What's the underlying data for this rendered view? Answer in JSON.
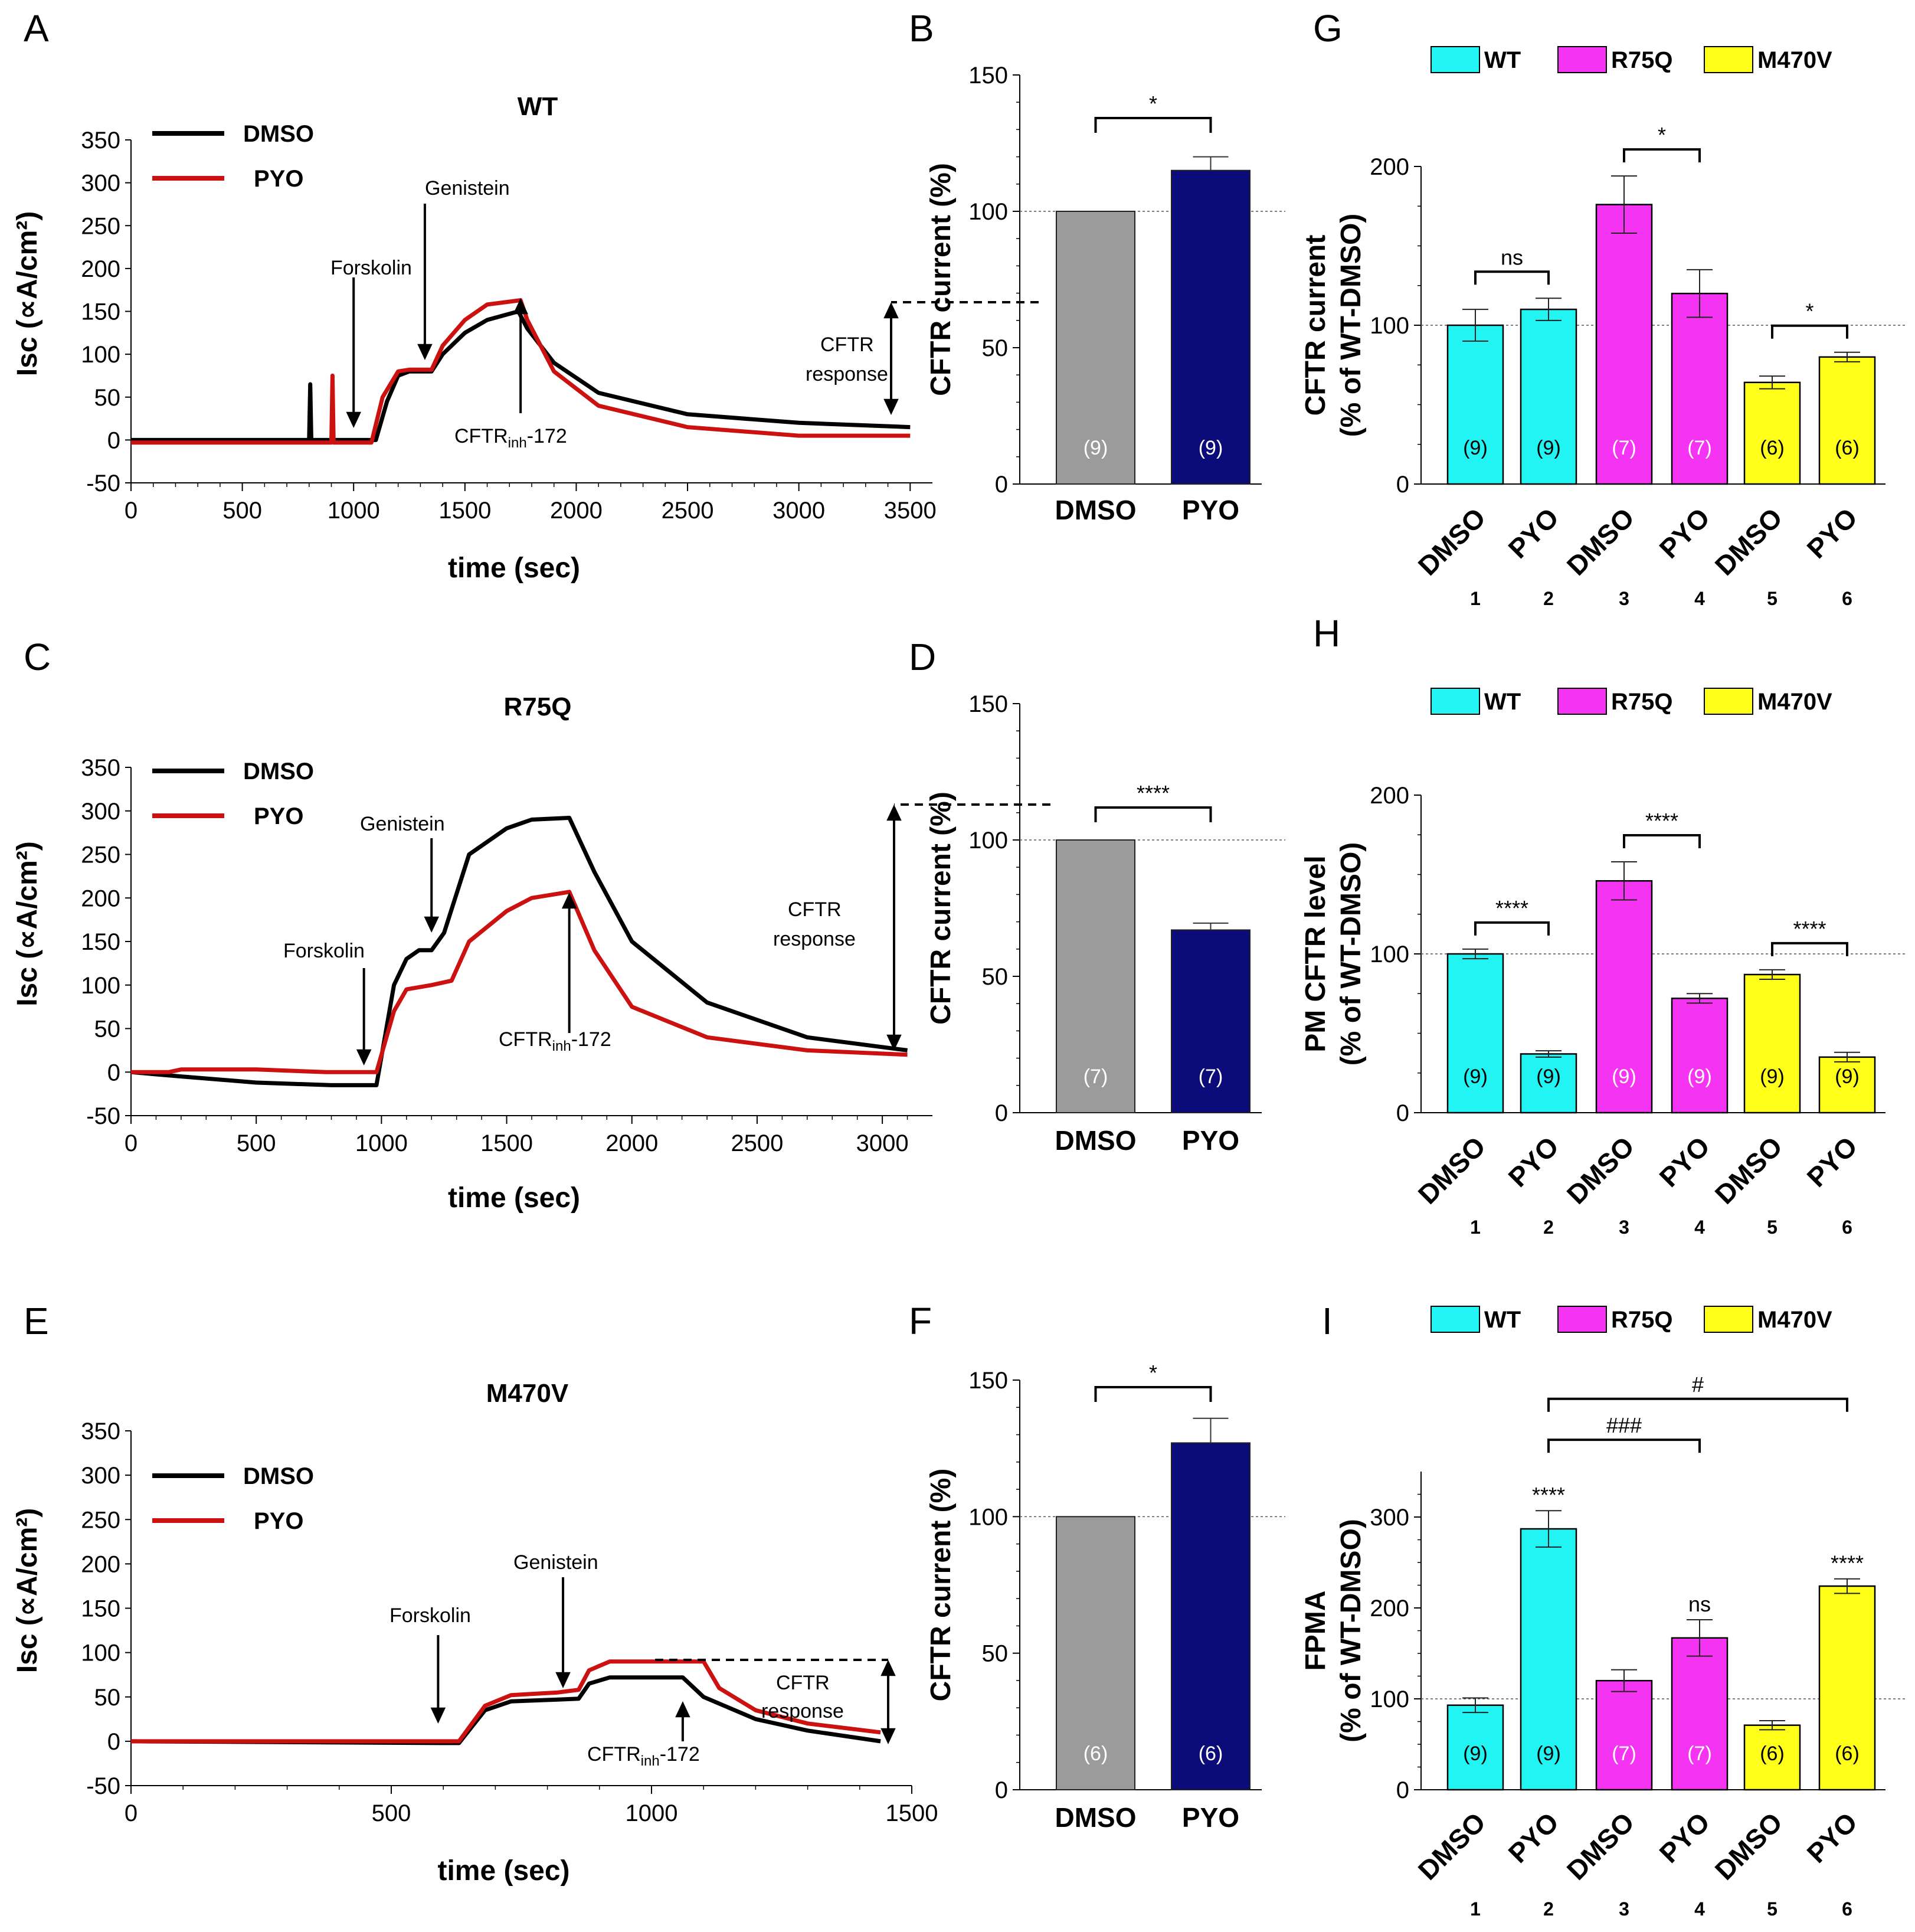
{
  "colors": {
    "dmso_line": "#000000",
    "pyo_line": "#cc1111",
    "dmso_bar": "#9b9b9b",
    "pyo_bar": "#0b0b7a",
    "wt": "#22f4f4",
    "r75q": "#f533f2",
    "m470v": "#ffff1a"
  },
  "chart_data": [
    {
      "panel": "A",
      "type": "line",
      "title": "WT",
      "xlabel": "time (sec)",
      "ylabel": "Isc (∝A/cm²)",
      "xlim": [
        0,
        3600
      ],
      "ylim": [
        -50,
        350
      ],
      "xticks": [
        "0",
        "500",
        "1000",
        "1500",
        "2000",
        "2500",
        "3000",
        "3500"
      ],
      "yticks": [
        "-50",
        "0",
        "50",
        "100",
        "150",
        "200",
        "250",
        "300",
        "350"
      ],
      "legend": [
        "DMSO",
        "PYO"
      ],
      "series": [
        {
          "name": "DMSO",
          "points": [
            [
              0,
              0
            ],
            [
              800,
              0
            ],
            [
              805,
              65
            ],
            [
              810,
              0
            ],
            [
              1100,
              0
            ],
            [
              1150,
              45
            ],
            [
              1200,
              75
            ],
            [
              1250,
              80
            ],
            [
              1350,
              80
            ],
            [
              1400,
              100
            ],
            [
              1500,
              125
            ],
            [
              1600,
              140
            ],
            [
              1740,
              150
            ],
            [
              1780,
              130
            ],
            [
              1900,
              90
            ],
            [
              2100,
              55
            ],
            [
              2500,
              30
            ],
            [
              3000,
              20
            ],
            [
              3500,
              15
            ]
          ]
        },
        {
          "name": "PYO",
          "points": [
            [
              0,
              -3
            ],
            [
              900,
              -3
            ],
            [
              905,
              75
            ],
            [
              910,
              -3
            ],
            [
              1080,
              -3
            ],
            [
              1130,
              50
            ],
            [
              1200,
              80
            ],
            [
              1250,
              82
            ],
            [
              1350,
              82
            ],
            [
              1400,
              110
            ],
            [
              1500,
              140
            ],
            [
              1600,
              158
            ],
            [
              1750,
              163
            ],
            [
              1780,
              140
            ],
            [
              1900,
              80
            ],
            [
              2100,
              40
            ],
            [
              2500,
              15
            ],
            [
              3000,
              5
            ],
            [
              3500,
              5
            ]
          ]
        }
      ],
      "annotations": [
        {
          "label": "Forskolin",
          "x": 1000
        },
        {
          "label": "Genistein",
          "x": 1320
        },
        {
          "label": "CFTR",
          "label_sub": "inh",
          "label_post": "-172",
          "x": 1750
        },
        {
          "label": "CFTR",
          "label_2": "response"
        }
      ]
    },
    {
      "panel": "C",
      "type": "line",
      "title": "R75Q",
      "xlabel": "time (sec)",
      "ylabel": "Isc (∝A/cm²)",
      "xlim": [
        0,
        3200
      ],
      "ylim": [
        -50,
        350
      ],
      "xticks": [
        "0",
        "500",
        "1000",
        "1500",
        "2000",
        "2500",
        "3000"
      ],
      "yticks": [
        "-50",
        "0",
        "50",
        "100",
        "150",
        "200",
        "250",
        "300",
        "350"
      ],
      "legend": [
        "DMSO",
        "PYO"
      ],
      "series": [
        {
          "name": "DMSO",
          "points": [
            [
              0,
              0
            ],
            [
              200,
              -5
            ],
            [
              500,
              -12
            ],
            [
              800,
              -15
            ],
            [
              980,
              -15
            ],
            [
              1050,
              100
            ],
            [
              1100,
              130
            ],
            [
              1150,
              140
            ],
            [
              1200,
              140
            ],
            [
              1250,
              160
            ],
            [
              1350,
              250
            ],
            [
              1500,
              280
            ],
            [
              1600,
              290
            ],
            [
              1750,
              292
            ],
            [
              1850,
              230
            ],
            [
              2000,
              150
            ],
            [
              2300,
              80
            ],
            [
              2700,
              40
            ],
            [
              3100,
              25
            ]
          ]
        },
        {
          "name": "PYO",
          "points": [
            [
              0,
              0
            ],
            [
              150,
              0
            ],
            [
              200,
              3
            ],
            [
              500,
              3
            ],
            [
              780,
              0
            ],
            [
              980,
              0
            ],
            [
              1050,
              70
            ],
            [
              1100,
              95
            ],
            [
              1200,
              100
            ],
            [
              1280,
              105
            ],
            [
              1350,
              150
            ],
            [
              1500,
              185
            ],
            [
              1600,
              200
            ],
            [
              1750,
              207
            ],
            [
              1850,
              140
            ],
            [
              2000,
              75
            ],
            [
              2300,
              40
            ],
            [
              2700,
              25
            ],
            [
              3100,
              20
            ]
          ]
        }
      ],
      "annotations": [
        {
          "label": "Forskolin",
          "x": 930
        },
        {
          "label": "Genistein",
          "x": 1200
        },
        {
          "label": "CFTR",
          "label_sub": "inh",
          "label_post": "-172",
          "x": 1750
        },
        {
          "label": "CFTR",
          "label_2": "response"
        }
      ]
    },
    {
      "panel": "E",
      "type": "line",
      "title": "M470V",
      "xlabel": "time (sec)",
      "ylabel": "Isc (∝A/cm²)",
      "xlim": [
        0,
        1500
      ],
      "ylim": [
        -50,
        350
      ],
      "xticks": [
        "0",
        "500",
        "1000",
        "1500"
      ],
      "yticks": [
        "-50",
        "0",
        "50",
        "100",
        "150",
        "200",
        "250",
        "300",
        "350"
      ],
      "legend": [
        "DMSO",
        "PYO"
      ],
      "series": [
        {
          "name": "DMSO",
          "points": [
            [
              0,
              0
            ],
            [
              600,
              -2
            ],
            [
              630,
              -2
            ],
            [
              680,
              35
            ],
            [
              730,
              45
            ],
            [
              820,
              47
            ],
            [
              860,
              48
            ],
            [
              880,
              65
            ],
            [
              920,
              72
            ],
            [
              1060,
              72
            ],
            [
              1100,
              50
            ],
            [
              1200,
              25
            ],
            [
              1300,
              12
            ],
            [
              1440,
              0
            ]
          ]
        },
        {
          "name": "PYO",
          "points": [
            [
              0,
              0
            ],
            [
              600,
              0
            ],
            [
              630,
              0
            ],
            [
              680,
              40
            ],
            [
              730,
              52
            ],
            [
              820,
              55
            ],
            [
              860,
              58
            ],
            [
              880,
              80
            ],
            [
              920,
              90
            ],
            [
              1100,
              90
            ],
            [
              1130,
              60
            ],
            [
              1200,
              35
            ],
            [
              1300,
              20
            ],
            [
              1440,
              10
            ]
          ]
        }
      ],
      "annotations": [
        {
          "label": "Forskolin",
          "x": 590
        },
        {
          "label": "Genistein",
          "x": 830
        },
        {
          "label": "CFTR",
          "label_sub": "inh",
          "label_post": "-172",
          "x": 1060
        },
        {
          "label": "CFTR",
          "label_2": "response"
        }
      ]
    },
    {
      "panel": "B",
      "type": "bar",
      "ylabel": "CFTR current (%)",
      "ylim": [
        0,
        150
      ],
      "yticks": [
        "0",
        "50",
        "100",
        "150"
      ],
      "categories": [
        "DMSO",
        "PYO"
      ],
      "values": [
        100,
        115
      ],
      "errors": [
        0,
        5
      ],
      "n": [
        "(9)",
        "(9)"
      ],
      "significance": "*"
    },
    {
      "panel": "D",
      "type": "bar",
      "ylabel": "CFTR current (%)",
      "ylim": [
        0,
        150
      ],
      "yticks": [
        "0",
        "50",
        "100",
        "150"
      ],
      "categories": [
        "DMSO",
        "PYO"
      ],
      "values": [
        100,
        67
      ],
      "errors": [
        0,
        2.5
      ],
      "n": [
        "(7)",
        "(7)"
      ],
      "significance": "****"
    },
    {
      "panel": "F",
      "type": "bar",
      "ylabel": "CFTR current (%)",
      "ylim": [
        0,
        150
      ],
      "yticks": [
        "0",
        "50",
        "100",
        "150"
      ],
      "categories": [
        "DMSO",
        "PYO"
      ],
      "values": [
        100,
        127
      ],
      "errors": [
        0,
        9
      ],
      "n": [
        "(6)",
        "(6)"
      ],
      "significance": "*"
    },
    {
      "panel": "G",
      "type": "bar",
      "ylabel": "CFTR current",
      "ylabel_2": "(% of WT-DMSO)",
      "ylim": [
        0,
        200
      ],
      "yticks": [
        "0",
        "100",
        "200"
      ],
      "legend": [
        "WT",
        "R75Q",
        "M470V"
      ],
      "categories": [
        "DMSO",
        "PYO",
        "DMSO",
        "PYO",
        "DMSO",
        "PYO"
      ],
      "indices": [
        "1",
        "2",
        "3",
        "4",
        "5",
        "6"
      ],
      "groups": [
        "WT",
        "WT",
        "R75Q",
        "R75Q",
        "M470V",
        "M470V"
      ],
      "values": [
        100,
        110,
        176,
        120,
        64,
        80
      ],
      "errors": [
        10,
        7,
        18,
        15,
        4,
        3
      ],
      "n": [
        "(9)",
        "(9)",
        "(7)",
        "(7)",
        "(6)",
        "(6)"
      ],
      "comparisons": [
        {
          "from": 0,
          "to": 1,
          "label": "ns"
        },
        {
          "from": 2,
          "to": 3,
          "label": "*"
        },
        {
          "from": 4,
          "to": 5,
          "label": "*"
        }
      ]
    },
    {
      "panel": "H",
      "type": "bar",
      "ylabel": "PM CFTR level",
      "ylabel_2": "(% of WT-DMSO)",
      "ylim": [
        0,
        200
      ],
      "yticks": [
        "0",
        "100",
        "200"
      ],
      "legend": [
        "WT",
        "R75Q",
        "M470V"
      ],
      "categories": [
        "DMSO",
        "PYO",
        "DMSO",
        "PYO",
        "DMSO",
        "PYO"
      ],
      "indices": [
        "1",
        "2",
        "3",
        "4",
        "5",
        "6"
      ],
      "groups": [
        "WT",
        "WT",
        "R75Q",
        "R75Q",
        "M470V",
        "M470V"
      ],
      "values": [
        100,
        37,
        146,
        72,
        87,
        35
      ],
      "errors": [
        3,
        2,
        12,
        3,
        3,
        3
      ],
      "n": [
        "(9)",
        "(9)",
        "(9)",
        "(9)",
        "(9)",
        "(9)"
      ],
      "comparisons": [
        {
          "from": 0,
          "to": 1,
          "label": "****"
        },
        {
          "from": 2,
          "to": 3,
          "label": "****"
        },
        {
          "from": 4,
          "to": 5,
          "label": "****"
        }
      ]
    },
    {
      "panel": "I",
      "type": "bar",
      "ylabel": "FPMA",
      "ylabel_2": "(% of WT-DMSO)",
      "ylim": [
        0,
        350
      ],
      "yticks": [
        "0",
        "100",
        "200",
        "300"
      ],
      "legend": [
        "WT",
        "R75Q",
        "M470V"
      ],
      "categories": [
        "DMSO",
        "PYO",
        "DMSO",
        "PYO",
        "DMSO",
        "PYO"
      ],
      "indices": [
        "1",
        "2",
        "3",
        "4",
        "5",
        "6"
      ],
      "groups": [
        "WT",
        "WT",
        "R75Q",
        "R75Q",
        "M470V",
        "M470V"
      ],
      "values": [
        93,
        287,
        120,
        167,
        71,
        224
      ],
      "errors": [
        8,
        20,
        12,
        20,
        5,
        8
      ],
      "n": [
        "(9)",
        "(9)",
        "(7)",
        "(7)",
        "(6)",
        "(6)"
      ],
      "bar_labels": [
        "",
        "****",
        "",
        "ns",
        "",
        "****"
      ],
      "comparisons": [
        {
          "from": 1,
          "to": 3,
          "label": "###"
        },
        {
          "from": 1,
          "to": 5,
          "label": "#"
        }
      ]
    }
  ]
}
